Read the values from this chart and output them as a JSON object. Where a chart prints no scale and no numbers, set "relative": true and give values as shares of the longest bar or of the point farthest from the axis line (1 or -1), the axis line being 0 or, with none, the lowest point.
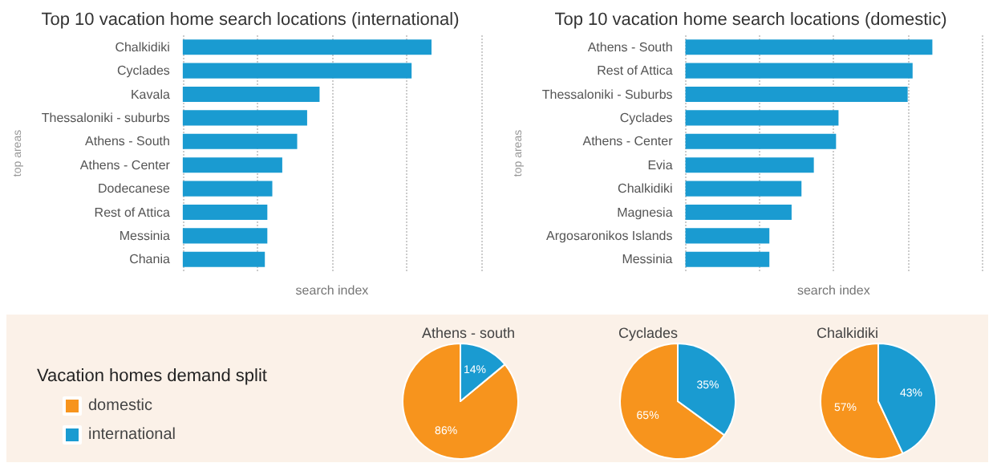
{
  "chart_data": [
    {
      "type": "bar",
      "orientation": "horizontal",
      "relative": true,
      "title": "Top 10 vacation home search locations (international)",
      "xlabel": "search index",
      "ylabel": "top areas",
      "grid": "x",
      "legend": false,
      "categories": [
        "Chalkidiki",
        "Cyclades",
        "Kavala",
        "Thessaloniki - suburbs",
        "Athens - South",
        "Athens - Center",
        "Dodecanese",
        "Rest of Attica",
        "Messinia",
        "Chania"
      ],
      "series": [
        {
          "color": "#1a9bd1",
          "values": [
            1,
            0.92,
            0.55,
            0.5,
            0.46,
            0.4,
            0.36,
            0.34,
            0.34,
            0.33
          ]
        }
      ]
    },
    {
      "type": "bar",
      "orientation": "horizontal",
      "relative": true,
      "title": "Top 10 vacation home search locations (domestic)",
      "xlabel": "search index",
      "ylabel": "top areas",
      "grid": "x",
      "legend": false,
      "categories": [
        "Athens - South",
        "Rest of Attica",
        "Thessaloniki - Suburbs",
        "Cyclades",
        "Athens - Center",
        "Evia",
        "Chalkidiki",
        "Magnesia",
        "Argosaronikos Islands",
        "Messinia"
      ],
      "series": [
        {
          "color": "#1a9bd1",
          "values": [
            1,
            0.92,
            0.9,
            0.62,
            0.61,
            0.52,
            0.47,
            0.43,
            0.34,
            0.34
          ]
        }
      ]
    },
    {
      "type": "pie",
      "title": "Athens - south",
      "legend": "left",
      "legend_title": "Vacation homes demand split",
      "categories": [
        "domestic",
        "international"
      ],
      "values": [
        86,
        14
      ],
      "value_labels": [
        "86%",
        "14%"
      ],
      "colors": [
        "#f7941d",
        "#1a9bd1"
      ]
    },
    {
      "type": "pie",
      "title": "Cyclades",
      "legend": false,
      "categories": [
        null,
        null
      ],
      "values": [
        65,
        35
      ],
      "value_labels": [
        "65%",
        "35%"
      ],
      "colors": [
        "#f7941d",
        "#1a9bd1"
      ]
    },
    {
      "type": "pie",
      "title": "Chalkidiki",
      "legend": false,
      "categories": [
        null,
        null
      ],
      "values": [
        57,
        43
      ],
      "value_labels": [
        "57%",
        "43%"
      ],
      "colors": [
        "#f7941d",
        "#1a9bd1"
      ]
    }
  ]
}
